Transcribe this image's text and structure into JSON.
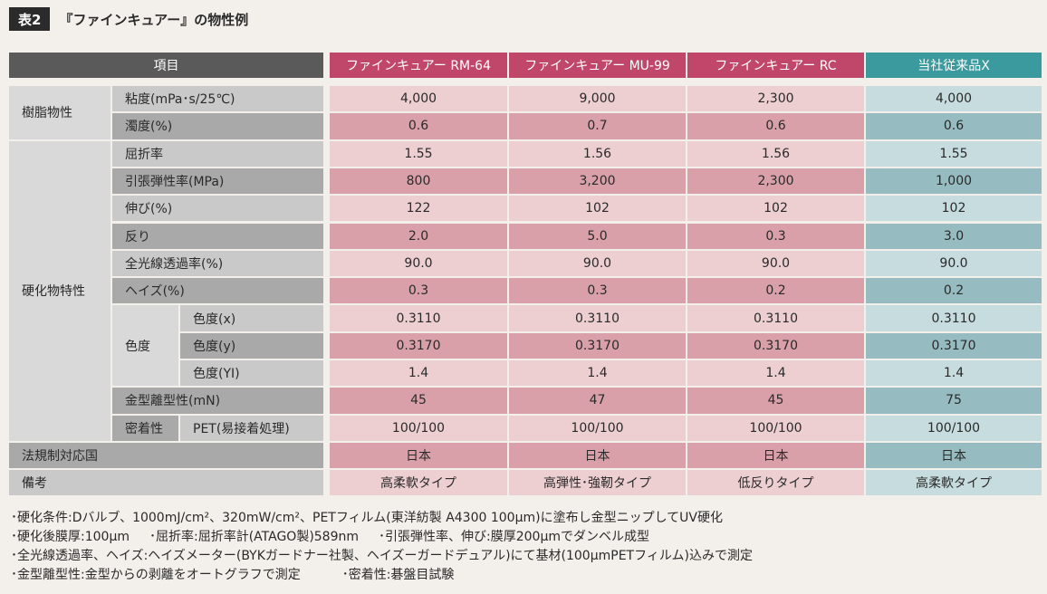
{
  "title": {
    "badge": "表2",
    "caption": "『ファインキュアー』の物性例"
  },
  "header": {
    "item_label": "項目",
    "products": [
      "ファインキュアー RM-64",
      "ファインキュアー MU-99",
      "ファインキュアー RC",
      "当社従来品X"
    ]
  },
  "groups": {
    "resin": "樹脂物性",
    "cured": "硬化物特性",
    "color": "色度",
    "adhesion": "密着性"
  },
  "rows": [
    {
      "label": "粘度(mPa･s/25℃)",
      "values": [
        "4,000",
        "9,000",
        "2,300",
        "4,000"
      ]
    },
    {
      "label": "濁度(%)",
      "values": [
        "0.6",
        "0.7",
        "0.6",
        "0.6"
      ]
    },
    {
      "label": "屈折率",
      "values": [
        "1.55",
        "1.56",
        "1.56",
        "1.55"
      ]
    },
    {
      "label": "引張弾性率(MPa)",
      "values": [
        "800",
        "3,200",
        "2,300",
        "1,000"
      ]
    },
    {
      "label": "伸び(%)",
      "values": [
        "122",
        "102",
        "102",
        "102"
      ]
    },
    {
      "label": "反り",
      "values": [
        "2.0",
        "5.0",
        "0.3",
        "3.0"
      ]
    },
    {
      "label": "全光線透過率(%)",
      "values": [
        "90.0",
        "90.0",
        "90.0",
        "90.0"
      ]
    },
    {
      "label": "ヘイズ(%)",
      "values": [
        "0.3",
        "0.3",
        "0.2",
        "0.2"
      ]
    },
    {
      "label": "色度(x)",
      "values": [
        "0.3110",
        "0.3110",
        "0.3110",
        "0.3110"
      ]
    },
    {
      "label": "色度(y)",
      "values": [
        "0.3170",
        "0.3170",
        "0.3170",
        "0.3170"
      ]
    },
    {
      "label": "色度(YI)",
      "values": [
        "1.4",
        "1.4",
        "1.4",
        "1.4"
      ]
    },
    {
      "label": "金型離型性(mN)",
      "values": [
        "45",
        "47",
        "45",
        "75"
      ]
    },
    {
      "label": "PET(易接着処理)",
      "values": [
        "100/100",
        "100/100",
        "100/100",
        "100/100"
      ]
    },
    {
      "label": "法規制対応国",
      "values": [
        "日本",
        "日本",
        "日本",
        "日本"
      ]
    },
    {
      "label": "備考",
      "values": [
        "高柔軟タイプ",
        "高弾性･強靭タイプ",
        "低反りタイプ",
        "高柔軟タイプ"
      ]
    }
  ],
  "notes": [
    [
      "･硬化条件:Dバルブ、1000mJ/cm²、320mW/cm²、PETフィルム(東洋紡製 A4300 100μm)に塗布し金型ニップしてUV硬化"
    ],
    [
      "･硬化後膜厚:100μm",
      "･屈折率:屈折率計(ATAGO製)589nm",
      "･引張弾性率、伸び:膜厚200μmでダンベル成型"
    ],
    [
      "･全光線透過率、ヘイズ:ヘイズメーター(BYKガードナー社製、ヘイズーガードデュアル)にて基材(100μmPETフィルム)込みで測定"
    ],
    [
      "･金型離型性:金型からの剥離をオートグラフで測定",
      "･密着性:碁盤目試験"
    ]
  ],
  "colors": {
    "header_gray": "#5a5a5a",
    "header_product": "#c1476a",
    "header_conventional": "#3a9a9e",
    "pink_light": "#edcfd2",
    "pink_dark": "#d9a0a9",
    "teal_light": "#c6dcde",
    "teal_dark": "#96bcc1"
  }
}
